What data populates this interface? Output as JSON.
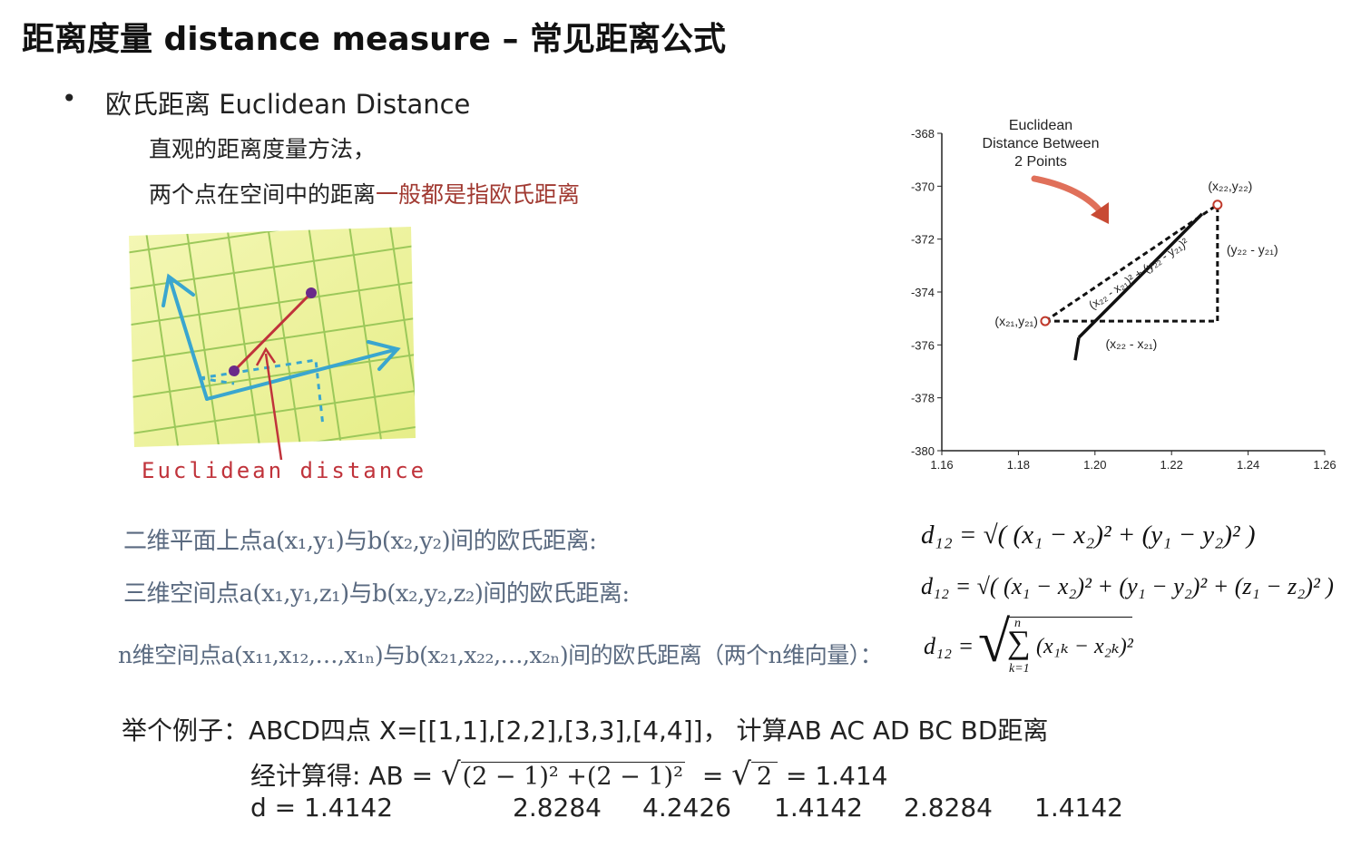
{
  "title": "距离度量 distance measure – 常见距离公式",
  "section": {
    "bullet": "•",
    "heading": "欧氏距离 Euclidean Distance",
    "desc_line1": "直观的距离度量方法，",
    "desc_line2_plain": "两个点在空间中的距离",
    "desc_line2_highlight": "一般都是指欧氏距离"
  },
  "illustration": {
    "caption": "Euclidean distance"
  },
  "chart": {
    "callout": [
      "Euclidean",
      "Distance Between",
      "2 Points"
    ],
    "p1_label": "(x₂₁,y₂₁)",
    "p2_label": "(x₂₂,y₂₂)",
    "dx_label": "(x₂₂ - x₂₁)",
    "dy_label": "(y₂₂ - y₂₁)",
    "hyp_label": "(x₂₂ - x₂₁)² + (y₂₂ - y₂₁)²",
    "colors": {
      "point": "#c0392b",
      "arrow": "#e0705a"
    }
  },
  "chart_data": {
    "type": "scatter",
    "title": "",
    "xlabel": "",
    "ylabel": "",
    "xlim": [
      1.16,
      1.26
    ],
    "ylim": [
      -380,
      -368
    ],
    "xticks": [
      "1.16",
      "1.18",
      "1.20",
      "1.22",
      "1.24",
      "1.26"
    ],
    "yticks": [
      "-368",
      "-370",
      "-372",
      "-374",
      "-376",
      "-378",
      "-380"
    ],
    "x": [
      1.187,
      1.232
    ],
    "y": [
      -375.1,
      -370.7
    ],
    "grid": false
  },
  "formulas": {
    "row1_label": "二维平面上点a(x₁,y₁)与b(x₂,y₂)间的欧氏距离:",
    "row2_label": "三维空间点a(x₁,y₁,z₁)与b(x₂,y₂,z₂)间的欧氏距离:",
    "row3_label": "n维空间点a(x₁₁,x₁₂,…,x₁ₙ)与b(x₂₁,x₂₂,…,x₂ₙ)间的欧氏距离（两个n维向量）：",
    "row1_math": "d₁₂ = √( (x₁ − x₂)² + (y₁ − y₂)² )",
    "row2_math": "d₁₂ = √( (x₁ − x₂)² + (y₁ − y₂)² + (z₁ − z₂)² )",
    "row3_lhs": "d₁₂ =",
    "row3_sum_top": "n",
    "row3_sum_bottom": "k=1",
    "row3_body": "(x₁ₖ − x₂ₖ)²"
  },
  "example": {
    "line1": "举个例子：ABCD四点 X=[[1,1],[2,2],[3,3],[4,4]]， 计算AB AC AD BC BD距离",
    "line2_prefix": "经计算得: AB =",
    "line2_root": "(2 − 1)² +(2 − 1)²",
    "line2_eq": "=",
    "line2_root2": "2",
    "line2_result": "= 1.414",
    "d_prefix": "d = 1.4142",
    "d_values": [
      "2.8284",
      "4.2426",
      "1.4142",
      "2.8284",
      "1.4142"
    ]
  }
}
